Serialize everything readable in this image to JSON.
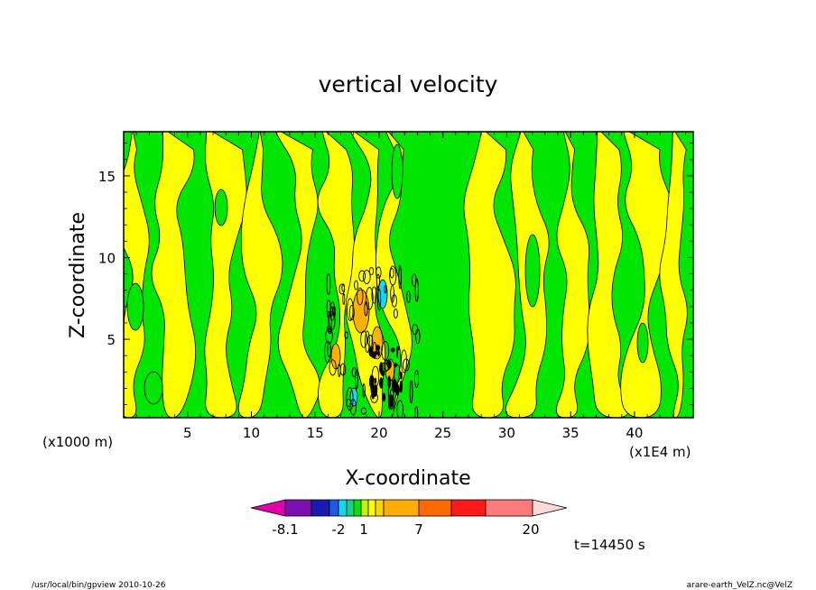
{
  "chart_data": {
    "type": "heatmap",
    "title": "vertical velocity",
    "xlabel": "X-coordinate",
    "ylabel": "Z-coordinate",
    "x_unit_label": "(x1E4 m)",
    "y_unit_label": "(x1000 m)",
    "xlim": [
      0,
      44.6
    ],
    "ylim": [
      0.2,
      17.7
    ],
    "x_ticks": [
      "5",
      "10",
      "15",
      "20",
      "25",
      "30",
      "35",
      "40"
    ],
    "y_ticks": [
      "5",
      "10",
      "15"
    ],
    "colorbar": {
      "tick_labels": [
        "-8.1",
        "-2",
        "1",
        "7",
        "20"
      ],
      "colors": [
        "#dd00aa",
        "#7a10b0",
        "#1b1bb0",
        "#1a5ae6",
        "#16d6f0",
        "#14d28a",
        "#00e600",
        "#c8f000",
        "#ffff00",
        "#ffd400",
        "#ffae00",
        "#ff6a00",
        "#ff1a1a",
        "#ff7a7a",
        "#ffb8b8",
        "#ffd8d8"
      ],
      "extend": "both"
    },
    "background_fields": {
      "yellow": "#ffff00",
      "green": "#00e600",
      "orange": "#ffb000",
      "cyan": "#16d6f0",
      "line": "#000000"
    }
  },
  "annotation": "t=14450 s",
  "footer": {
    "left": "/usr/local/bin/gpview  2010-10-26",
    "right": "arare-earth_VelZ.nc@VelZ"
  }
}
